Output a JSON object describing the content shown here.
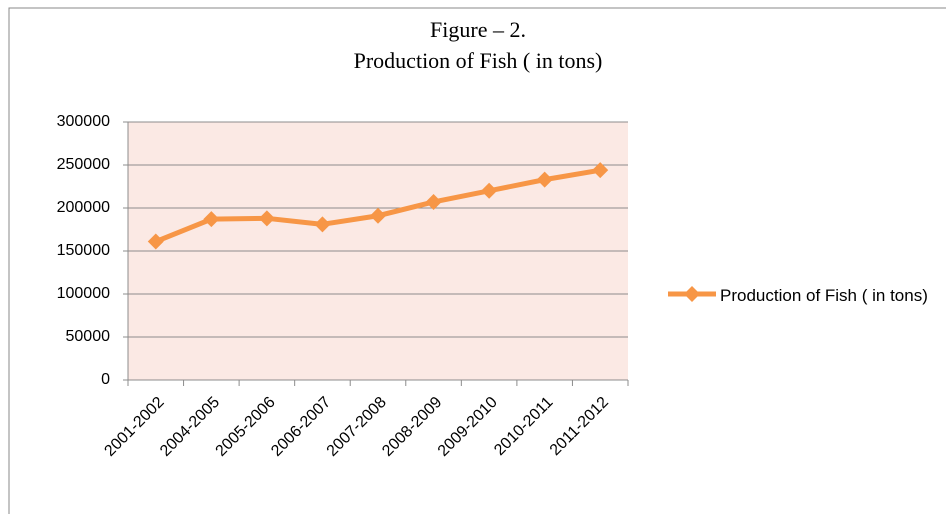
{
  "chart_data": {
    "type": "line",
    "title": "Figure – 2.",
    "subtitle": "Production of Fish ( in tons)",
    "categories": [
      "2001-2002",
      "2004-2005",
      "2005-2006",
      "2006-2007",
      "2007-2008",
      "2008-2009",
      "2009-2010",
      "2010-2011",
      "2011-2012"
    ],
    "series": [
      {
        "name": "Production of Fish ( in tons)",
        "color": "#f79646",
        "values": [
          161000,
          187000,
          188000,
          181000,
          191000,
          207000,
          220000,
          233000,
          244000
        ]
      }
    ],
    "ylim": [
      0,
      300000
    ],
    "yticks": [
      0,
      50000,
      100000,
      150000,
      200000,
      250000,
      300000
    ],
    "grid": true,
    "legend": "right"
  }
}
